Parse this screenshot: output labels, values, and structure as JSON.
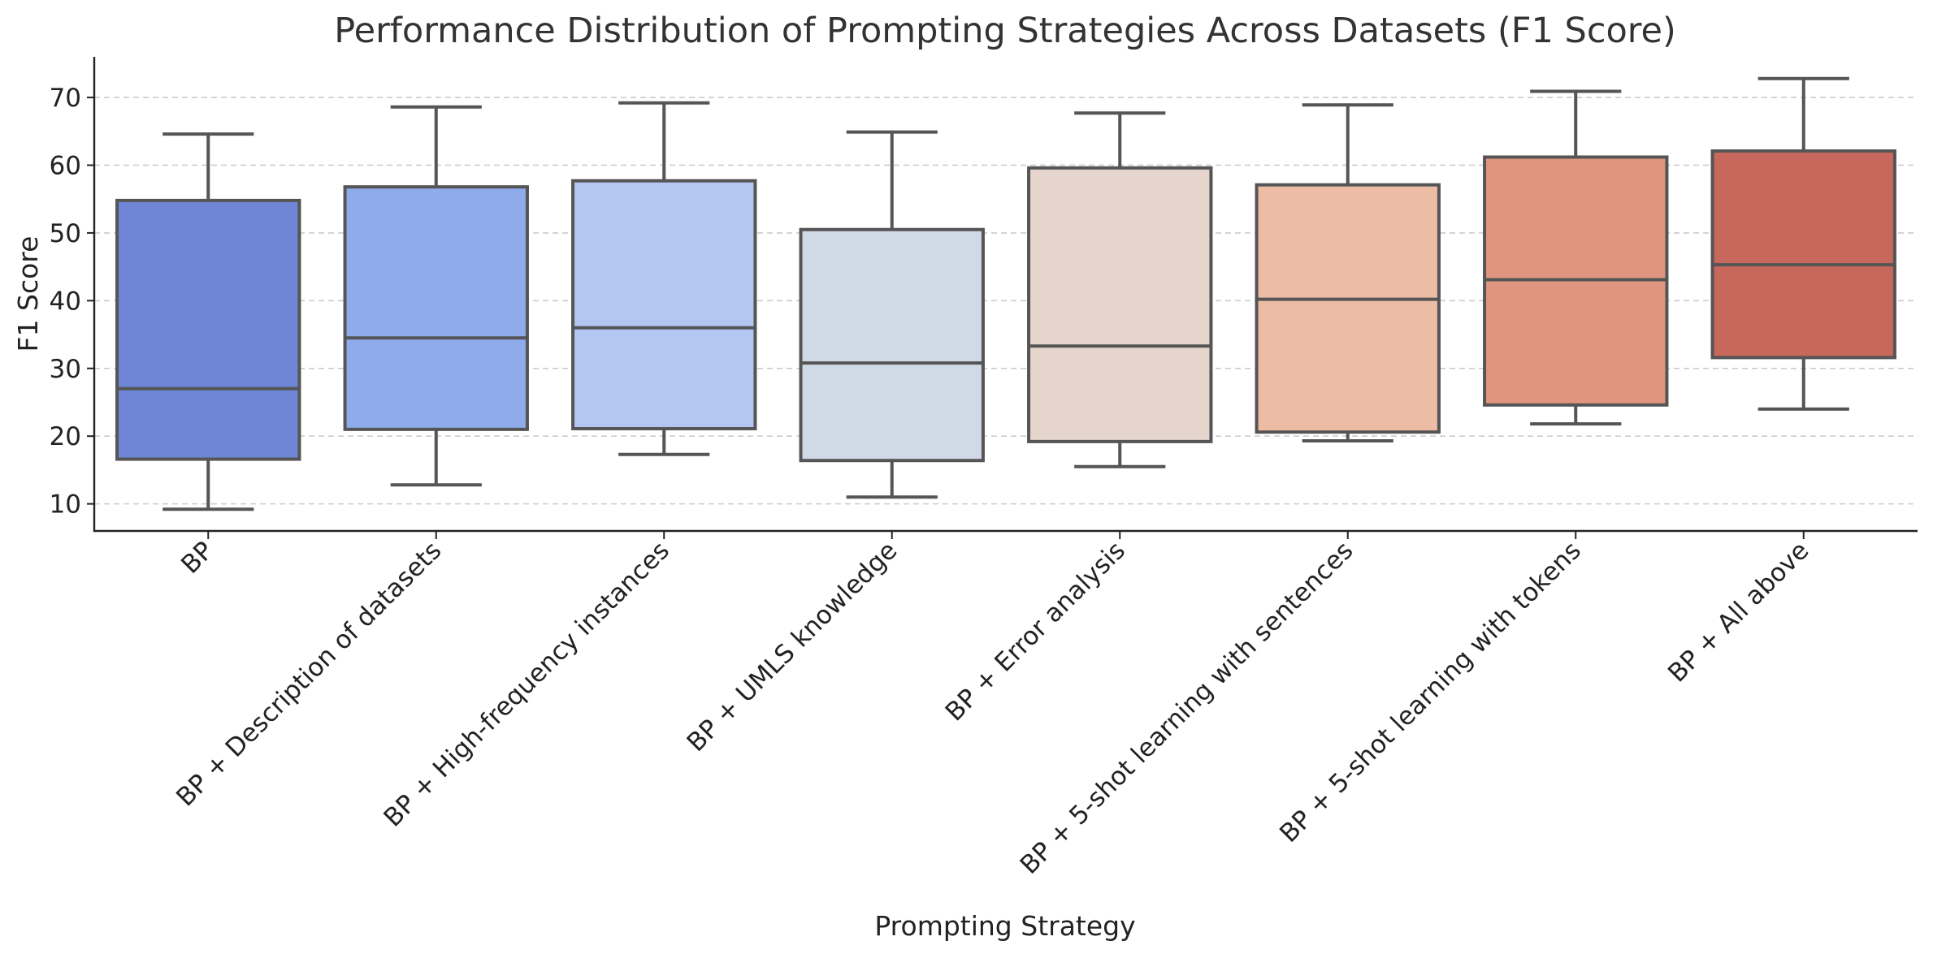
{
  "chart_data": {
    "type": "box",
    "title": "Performance Distribution of Prompting Strategies Across Datasets (F1 Score)",
    "xlabel": "Prompting Strategy",
    "ylabel": "F1 Score",
    "ylim": [
      6,
      76
    ],
    "yticks": [
      10,
      20,
      30,
      40,
      50,
      60,
      70
    ],
    "grid": "horizontal dashed",
    "categories": [
      "BP",
      "BP + Description of datasets",
      "BP + High-frequency instances",
      "BP + UMLS knowledge",
      "BP + Error analysis",
      "BP + 5-shot learning with sentences",
      "BP + 5-shot learning with tokens",
      "BP + All above"
    ],
    "boxes": [
      {
        "min": 9.2,
        "q1": 16.6,
        "median": 27.0,
        "q3": 54.8,
        "max": 64.6,
        "color": "#6f86d6"
      },
      {
        "min": 12.8,
        "q1": 21.0,
        "median": 34.5,
        "q3": 56.8,
        "max": 68.6,
        "color": "#8fabec"
      },
      {
        "min": 17.3,
        "q1": 21.1,
        "median": 36.0,
        "q3": 57.7,
        "max": 69.2,
        "color": "#b4c7f2"
      },
      {
        "min": 11.0,
        "q1": 16.4,
        "median": 30.8,
        "q3": 50.5,
        "max": 64.9,
        "color": "#d0d9e6"
      },
      {
        "min": 15.5,
        "q1": 19.2,
        "median": 33.3,
        "q3": 59.6,
        "max": 67.7,
        "color": "#e5d5cc"
      },
      {
        "min": 19.3,
        "q1": 20.6,
        "median": 40.2,
        "q3": 57.1,
        "max": 68.9,
        "color": "#ecbca4"
      },
      {
        "min": 21.8,
        "q1": 24.6,
        "median": 43.1,
        "q3": 61.2,
        "max": 70.9,
        "color": "#e0967e"
      },
      {
        "min": 24.0,
        "q1": 31.6,
        "median": 45.3,
        "q3": 62.1,
        "max": 72.8,
        "color": "#c8685c"
      }
    ]
  }
}
